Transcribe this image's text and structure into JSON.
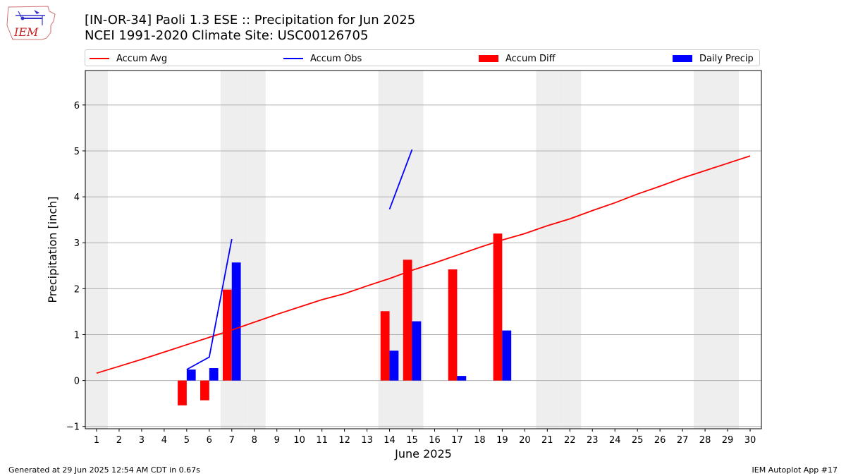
{
  "logo": {
    "text": "IEM",
    "color": "#cc2222"
  },
  "chart_data": {
    "type": "bar",
    "title": "[IN-OR-34] Paoli 1.3 ESE :: Precipitation for Jun 2025",
    "subtitle": "NCEI 1991-2020 Climate Site: USC00126705",
    "xlabel": "June 2025",
    "ylabel": "Precipitation [inch]",
    "x": [
      1,
      2,
      3,
      4,
      5,
      6,
      7,
      8,
      9,
      10,
      11,
      12,
      13,
      14,
      15,
      16,
      17,
      18,
      19,
      20,
      21,
      22,
      23,
      24,
      25,
      26,
      27,
      28,
      29,
      30
    ],
    "xlim": [
      0.5,
      30.5
    ],
    "ylim": [
      -1.05,
      6.75
    ],
    "yticks": [
      -1,
      0,
      1,
      2,
      3,
      4,
      5,
      6
    ],
    "grid": "horizontal",
    "weekend_days": [
      1,
      7,
      8,
      14,
      15,
      21,
      22,
      28,
      29
    ],
    "weekend_color": "#eeeeee",
    "legend": [
      "Accum Avg",
      "Accum Obs",
      "Accum Diff",
      "Daily Precip"
    ],
    "legend_placement": "top",
    "series": [
      {
        "name": "Accum Avg",
        "type": "line",
        "color": "#ff0000",
        "values": [
          0.16,
          0.31,
          0.46,
          0.62,
          0.78,
          0.94,
          1.1,
          1.27,
          1.44,
          1.6,
          1.76,
          1.89,
          2.06,
          2.22,
          2.4,
          2.56,
          2.73,
          2.9,
          3.06,
          3.2,
          3.37,
          3.52,
          3.7,
          3.87,
          4.06,
          4.23,
          4.41,
          4.57,
          4.73,
          4.89
        ]
      },
      {
        "name": "Accum Obs",
        "type": "line",
        "color": "#0000ff",
        "values": [
          null,
          null,
          null,
          null,
          0.24,
          0.51,
          3.08,
          null,
          null,
          null,
          null,
          null,
          null,
          3.73,
          5.03,
          null,
          null,
          null,
          null,
          null,
          null,
          null,
          null,
          null,
          null,
          null,
          null,
          null,
          null,
          null
        ]
      },
      {
        "name": "Accum Diff",
        "type": "bar",
        "color": "#ff0000",
        "values": [
          null,
          null,
          null,
          null,
          -0.54,
          -0.43,
          1.98,
          null,
          null,
          null,
          null,
          null,
          null,
          1.51,
          2.63,
          null,
          2.42,
          null,
          3.2,
          null,
          null,
          null,
          null,
          null,
          null,
          null,
          null,
          null,
          null,
          null
        ]
      },
      {
        "name": "Daily Precip",
        "type": "bar",
        "color": "#0000ff",
        "values": [
          null,
          null,
          null,
          null,
          0.24,
          0.27,
          2.57,
          null,
          null,
          null,
          null,
          null,
          null,
          0.65,
          1.29,
          null,
          0.1,
          null,
          1.09,
          null,
          null,
          null,
          null,
          null,
          null,
          null,
          null,
          null,
          null,
          null
        ]
      }
    ]
  },
  "footer": {
    "left": "Generated at 29 Jun 2025 12:54 AM CDT in 0.67s",
    "right": "IEM Autoplot App #17"
  }
}
